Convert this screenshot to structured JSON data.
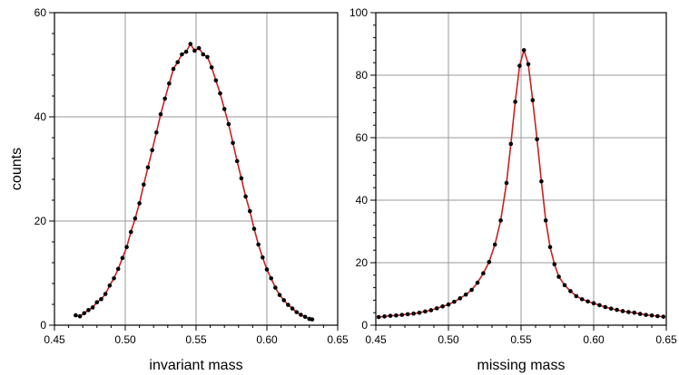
{
  "chart_data": [
    {
      "type": "scatter",
      "xlabel": "invariant mass",
      "ylabel": "counts",
      "xlim": [
        0.45,
        0.65
      ],
      "ylim": [
        0,
        60
      ],
      "xticks": [
        0.45,
        0.5,
        0.55,
        0.6,
        0.65
      ],
      "xtick_labels": [
        "0.45",
        "0.50",
        "0.55",
        "0.60",
        "0.65"
      ],
      "yticks": [
        0,
        20,
        40,
        60
      ],
      "ytick_labels": [
        "0",
        "20",
        "40",
        "60"
      ],
      "grid": true,
      "marker_color": "#000000",
      "fit_color": "#cc2020",
      "points": [
        [
          0.465,
          1.9
        ],
        [
          0.468,
          1.7
        ],
        [
          0.471,
          2.3
        ],
        [
          0.474,
          2.9
        ],
        [
          0.477,
          3.4
        ],
        [
          0.48,
          4.4
        ],
        [
          0.483,
          5.0
        ],
        [
          0.486,
          6.0
        ],
        [
          0.489,
          7.6
        ],
        [
          0.492,
          9.0
        ],
        [
          0.495,
          10.8
        ],
        [
          0.498,
          12.9
        ],
        [
          0.501,
          15.0
        ],
        [
          0.504,
          17.9
        ],
        [
          0.507,
          20.5
        ],
        [
          0.51,
          23.4
        ],
        [
          0.513,
          27.0
        ],
        [
          0.516,
          30.3
        ],
        [
          0.519,
          33.6
        ],
        [
          0.522,
          37.0
        ],
        [
          0.525,
          40.5
        ],
        [
          0.528,
          43.5
        ],
        [
          0.531,
          46.4
        ],
        [
          0.534,
          49.2
        ],
        [
          0.537,
          50.5
        ],
        [
          0.54,
          52.0
        ],
        [
          0.543,
          52.5
        ],
        [
          0.546,
          54.0
        ],
        [
          0.549,
          52.7
        ],
        [
          0.552,
          53.2
        ],
        [
          0.555,
          52.0
        ],
        [
          0.558,
          51.5
        ],
        [
          0.561,
          49.5
        ],
        [
          0.564,
          47.0
        ],
        [
          0.567,
          44.5
        ],
        [
          0.57,
          41.5
        ],
        [
          0.573,
          38.6
        ],
        [
          0.576,
          35.0
        ],
        [
          0.579,
          31.5
        ],
        [
          0.582,
          28.2
        ],
        [
          0.585,
          24.7
        ],
        [
          0.588,
          21.9
        ],
        [
          0.591,
          18.5
        ],
        [
          0.594,
          15.5
        ],
        [
          0.597,
          13.0
        ],
        [
          0.6,
          10.7
        ],
        [
          0.603,
          9.0
        ],
        [
          0.606,
          7.2
        ],
        [
          0.609,
          5.8
        ],
        [
          0.612,
          4.8
        ],
        [
          0.615,
          3.9
        ],
        [
          0.618,
          3.2
        ],
        [
          0.621,
          2.5
        ],
        [
          0.624,
          2.0
        ],
        [
          0.627,
          1.6
        ],
        [
          0.63,
          1.2
        ],
        [
          0.632,
          1.1
        ]
      ]
    },
    {
      "type": "scatter",
      "xlabel": "missing mass",
      "ylabel": "",
      "xlim": [
        0.45,
        0.65
      ],
      "ylim": [
        0,
        100
      ],
      "xticks": [
        0.45,
        0.5,
        0.55,
        0.6,
        0.65
      ],
      "xtick_labels": [
        "0.45",
        "0.50",
        "0.55",
        "0.60",
        "0.65"
      ],
      "yticks": [
        0,
        20,
        40,
        60,
        80,
        100
      ],
      "ytick_labels": [
        "0",
        "20",
        "40",
        "60",
        "80",
        "100"
      ],
      "grid": true,
      "marker_color": "#000000",
      "fit_color": "#cc2020",
      "points": [
        [
          0.452,
          2.6
        ],
        [
          0.456,
          2.8
        ],
        [
          0.46,
          3.0
        ],
        [
          0.464,
          3.1
        ],
        [
          0.468,
          3.3
        ],
        [
          0.472,
          3.5
        ],
        [
          0.476,
          3.7
        ],
        [
          0.48,
          4.0
        ],
        [
          0.484,
          4.4
        ],
        [
          0.488,
          4.8
        ],
        [
          0.492,
          5.4
        ],
        [
          0.496,
          6.0
        ],
        [
          0.5,
          6.6
        ],
        [
          0.504,
          7.5
        ],
        [
          0.508,
          8.6
        ],
        [
          0.512,
          9.8
        ],
        [
          0.516,
          11.3
        ],
        [
          0.52,
          13.6
        ],
        [
          0.524,
          16.6
        ],
        [
          0.528,
          20.2
        ],
        [
          0.532,
          25.8
        ],
        [
          0.536,
          33.5
        ],
        [
          0.54,
          45.5
        ],
        [
          0.543,
          58.0
        ],
        [
          0.546,
          71.5
        ],
        [
          0.549,
          83.0
        ],
        [
          0.552,
          88.0
        ],
        [
          0.555,
          83.5
        ],
        [
          0.558,
          72.0
        ],
        [
          0.561,
          59.5
        ],
        [
          0.564,
          46.0
        ],
        [
          0.567,
          33.5
        ],
        [
          0.57,
          25.0
        ],
        [
          0.573,
          19.5
        ],
        [
          0.576,
          15.5
        ],
        [
          0.58,
          12.8
        ],
        [
          0.584,
          10.9
        ],
        [
          0.588,
          9.3
        ],
        [
          0.592,
          8.3
        ],
        [
          0.596,
          7.6
        ],
        [
          0.6,
          7.0
        ],
        [
          0.604,
          6.4
        ],
        [
          0.608,
          5.8
        ],
        [
          0.612,
          5.3
        ],
        [
          0.616,
          4.9
        ],
        [
          0.62,
          4.5
        ],
        [
          0.624,
          4.2
        ],
        [
          0.628,
          4.0
        ],
        [
          0.632,
          3.6
        ],
        [
          0.636,
          3.3
        ],
        [
          0.64,
          3.1
        ],
        [
          0.644,
          2.9
        ],
        [
          0.648,
          2.7
        ]
      ]
    }
  ]
}
